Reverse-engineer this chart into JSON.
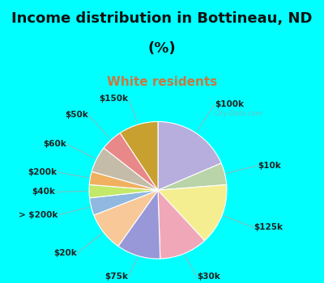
{
  "title_line1": "Income distribution in Bottineau, ND",
  "title_line2": "(%)",
  "subtitle": "White residents",
  "bg_cyan": "#00FFFF",
  "bg_chart": "#e8f8f0",
  "watermark": "City-Data.com",
  "labels": [
    "$100k",
    "$10k",
    "$125k",
    "$30k",
    "$75k",
    "$20k",
    "> $200k",
    "$40k",
    "$200k",
    "$60k",
    "$50k",
    "$150k"
  ],
  "values": [
    18,
    5,
    14,
    11,
    10,
    9,
    4,
    3,
    3,
    6,
    5,
    9
  ],
  "colors": [
    "#b8aedd",
    "#b8d4a8",
    "#f4ee90",
    "#f0a8b8",
    "#9898d8",
    "#f8c898",
    "#90b8e0",
    "#c4e868",
    "#f0b060",
    "#c4bca8",
    "#e88888",
    "#c8a030"
  ],
  "title_fontsize": 13,
  "subtitle_fontsize": 11,
  "subtitle_color": "#c87840",
  "label_fontsize": 7.5,
  "startangle": 90
}
